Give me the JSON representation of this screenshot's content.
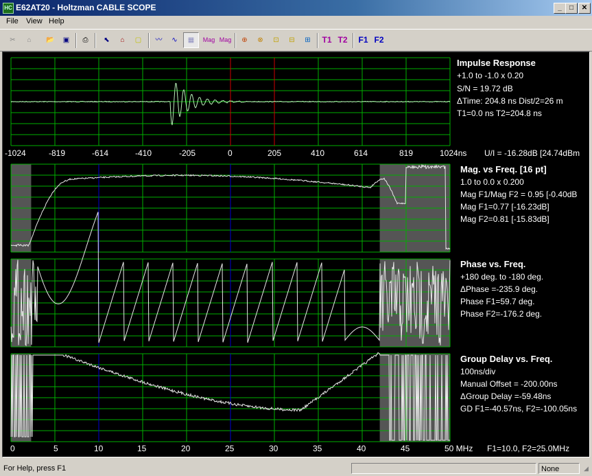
{
  "window": {
    "title": "E62AT20 - Holtzman CABLE SCOPE",
    "icon_text": "HC",
    "min": "_",
    "max": "□",
    "close": "✕"
  },
  "menu": [
    "File",
    "View",
    "Help"
  ],
  "toolbar_text": {
    "mag1": "Mag",
    "mag2": "Mag",
    "t1": "T1",
    "t2": "T2",
    "f1": "F1",
    "f2": "F2"
  },
  "colors": {
    "grid": "#00b000",
    "trace": "#e8e8e8",
    "impulse_trace": "#b8f0b8",
    "t_marker": "#d00000",
    "f_marker": "#0000d0",
    "shade": "#555555"
  },
  "impulse": {
    "heading": "Impulse Response",
    "scale": "+1.0 to -1.0 x 0.20",
    "sn": "S/N = 19.72 dB",
    "dtime": "ΔTime: 204.8 ns  Dist/2=26 m",
    "times": "T1=0.0 ns T2=204.8 ns",
    "ticks": [
      "-1024",
      "-819",
      "-614",
      "-410",
      "-205",
      "0",
      "205",
      "410",
      "614",
      "819",
      "1024ns"
    ],
    "ui": "U/I = -16.28dB [24.74dBm"
  },
  "magnitude": {
    "heading": "Mag. vs Freq. [16 pt]",
    "scale": "1.0 to 0.0 x 0.200",
    "ratio": "Mag F1/Mag F2 = 0.95 [-0.40dB",
    "f1": "Mag F1=0.77 [-16.23dB]",
    "f2": "Mag F2=0.81 [-15.83dB]"
  },
  "phase": {
    "heading": "Phase vs. Freq.",
    "scale": "+180 deg. to -180 deg.",
    "dphase": "ΔPhase =-235.9 deg.",
    "f1": "Phase F1=59.7 deg.",
    "f2": "Phase F2=-176.2 deg."
  },
  "group_delay": {
    "heading": "Group Delay vs. Freq.",
    "scale": "100ns/div",
    "offset": "Manual Offset = -200.00ns",
    "dgd": "ΔGroup Delay =-59.48ns",
    "gd": "GD F1=-40.57ns, F2=-100.05ns"
  },
  "freq_axis": {
    "ticks": [
      "0",
      "5",
      "10",
      "15",
      "20",
      "25",
      "30",
      "35",
      "40",
      "45",
      "50 MHz"
    ],
    "markers": "F1=10.0, F2=25.0MHz"
  },
  "status": {
    "help": "For Help, press F1",
    "mode": "None"
  }
}
